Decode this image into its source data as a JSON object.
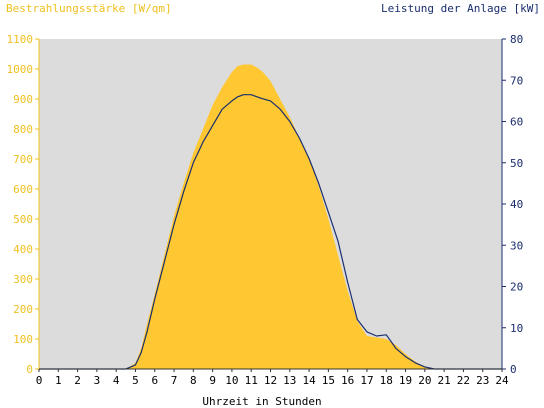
{
  "chart_data": {
    "type": "area",
    "left_axis_title": "Bestrahlungsstärke [W/qm]",
    "right_axis_title": "Leistung der Anlage [kW]",
    "xlabel": "Uhrzeit in Stunden",
    "x_ticks": [
      "0",
      "1",
      "2",
      "3",
      "4",
      "5",
      "6",
      "7",
      "8",
      "9",
      "10",
      "11",
      "12",
      "13",
      "14",
      "15",
      "16",
      "17",
      "18",
      "19",
      "20",
      "21",
      "22",
      "23",
      "24"
    ],
    "y_left_ticks": [
      "0",
      "100",
      "200",
      "300",
      "400",
      "500",
      "600",
      "700",
      "800",
      "900",
      "1000",
      "1100"
    ],
    "y_right_ticks": [
      "0",
      "10",
      "20",
      "30",
      "40",
      "50",
      "60",
      "70",
      "80"
    ],
    "xlim": [
      0,
      24
    ],
    "ylim_left": [
      0,
      1100
    ],
    "ylim_right": [
      0,
      80
    ],
    "grid": false,
    "colors": {
      "plot_background": "#dcdcdc",
      "irradiance_fill": "#ffc832",
      "power_line": "#1a2e6e",
      "left_axis": "#f0c020",
      "right_axis": "#1a2e6e"
    },
    "series": [
      {
        "axis": "left",
        "style": "area",
        "x": [
          0,
          4.5,
          5.0,
          5.3,
          5.6,
          6.0,
          6.5,
          7.0,
          7.5,
          8.0,
          8.5,
          9.0,
          9.5,
          10.0,
          10.3,
          10.6,
          11.0,
          11.3,
          11.6,
          12.0,
          12.5,
          13.0,
          13.5,
          14.0,
          14.5,
          15.0,
          15.5,
          16.0,
          16.5,
          17.0,
          17.5,
          18.0,
          18.5,
          19.0,
          19.5,
          20.0,
          20.5,
          24
        ],
        "values": [
          0,
          0,
          20,
          70,
          150,
          250,
          380,
          510,
          620,
          720,
          800,
          880,
          940,
          990,
          1010,
          1015,
          1015,
          1005,
          990,
          960,
          900,
          840,
          770,
          700,
          610,
          500,
          380,
          260,
          160,
          110,
          105,
          100,
          80,
          50,
          25,
          5,
          0,
          0
        ]
      },
      {
        "axis": "right",
        "style": "line",
        "x": [
          0,
          4.5,
          5.0,
          5.3,
          5.6,
          6.0,
          6.5,
          7.0,
          7.5,
          8.0,
          8.5,
          9.0,
          9.5,
          10.0,
          10.3,
          10.6,
          11.0,
          11.3,
          11.6,
          12.0,
          12.5,
          13.0,
          13.5,
          14.0,
          14.5,
          15.0,
          15.5,
          16.0,
          16.5,
          17.0,
          17.5,
          18.0,
          18.5,
          19.0,
          19.5,
          20.0,
          20.5,
          24
        ],
        "values": [
          0,
          0,
          1,
          4,
          9,
          17,
          26,
          35,
          43,
          50,
          55,
          59,
          63,
          65,
          66,
          66.5,
          66.5,
          66,
          65.5,
          65,
          63,
          60,
          56,
          51,
          45,
          38,
          31,
          21,
          12,
          9,
          8,
          8.3,
          5,
          3,
          1.5,
          0.5,
          0,
          0
        ]
      }
    ]
  }
}
